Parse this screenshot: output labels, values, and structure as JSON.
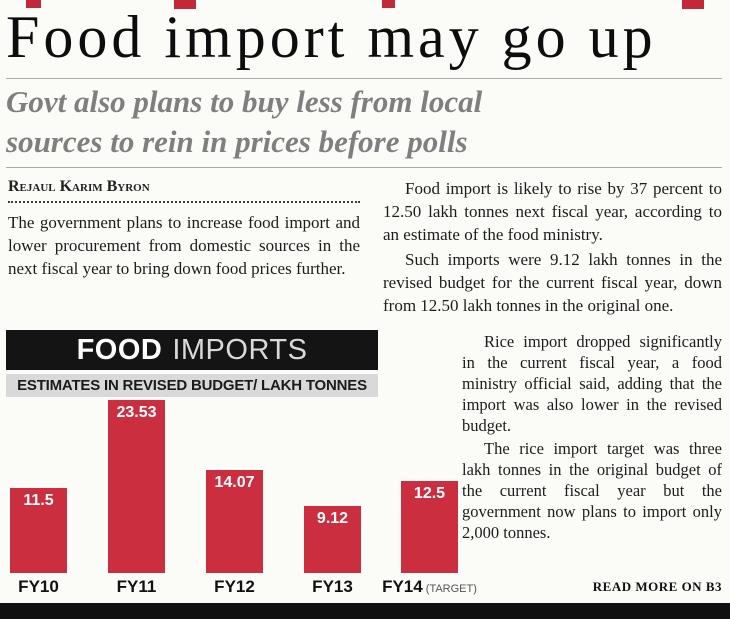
{
  "page": {
    "headline": "Food import may go up",
    "subtitle_lines": [
      "Govt also plans to buy less from local",
      "sources to rein in prices before polls"
    ]
  },
  "article": {
    "byline": "Rejaul Karim Byron",
    "intro_paragraph": "The government plans to increase food import and lower procurement from domestic sources in the next fiscal year to bring down food prices further.",
    "right_paragraphs": [
      "Food import is likely to rise by 37 percent to 12.50 lakh tonnes next fiscal year, according to an estimate of the food ministry.",
      "Such imports were 9.12 lakh tonnes in the revised budget for the current fiscal year, down from 12.50 lakh tonnes in the original one."
    ],
    "beside_chart_paragraphs": [
      "Rice import dropped significantly in the current fiscal year, a food ministry official said, adding that the import was also lower in the revised budget.",
      "The rice import target was three lakh tonnes in the original budget of the current fiscal year but the government now plans to import only 2,000 tonnes."
    ],
    "read_more": "READ MORE ON B3"
  },
  "chart": {
    "title_primary": "FOOD",
    "title_secondary": "IMPORTS",
    "subtitle": "ESTIMATES IN REVISED BUDGET/ LAKH TONNES"
  },
  "chart_data": {
    "type": "bar",
    "title": "FOOD IMPORTS",
    "subtitle": "ESTIMATES IN REVISED BUDGET/ LAKH TONNES",
    "categories": [
      "FY10",
      "FY11",
      "FY12",
      "FY13",
      "FY14"
    ],
    "values": [
      11.5,
      23.53,
      14.07,
      9.12,
      12.5
    ],
    "value_labels": [
      "11.5",
      "23.53",
      "14.07",
      "9.12",
      "12.5"
    ],
    "target_note": "(TARGET)",
    "ylim": [
      0,
      23.53
    ],
    "bar_color": "#cb2e3e",
    "grid": false,
    "legend": false
  },
  "colors": {
    "bar_red": "#cb2e3e",
    "header_black": "#141414",
    "subtitle_bar_gray": "#d9d9d9",
    "deck_gray": "#7f7f7f"
  }
}
